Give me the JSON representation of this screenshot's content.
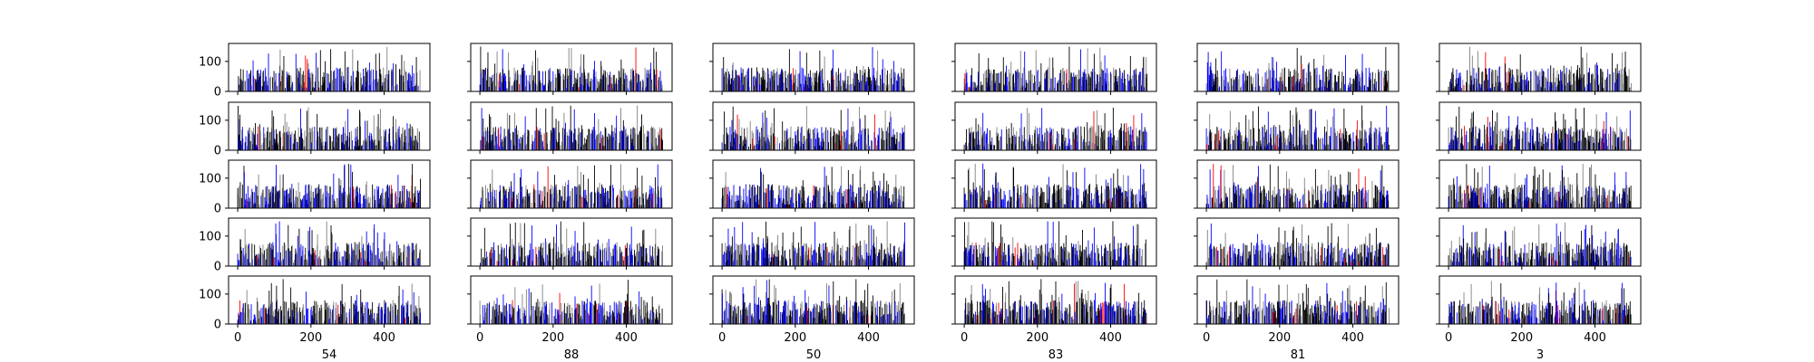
{
  "chart_data": {
    "type": "bar",
    "layout": "grid",
    "rows": 5,
    "cols": 6,
    "column_labels": [
      "54",
      "88",
      "50",
      "83",
      "81",
      "3"
    ],
    "xlim": [
      -25,
      525
    ],
    "ylim": [
      0,
      160
    ],
    "x_ticks": [
      0,
      200,
      400
    ],
    "y_ticks": [
      0,
      100
    ],
    "x_tick_labels": [
      "0",
      "200",
      "400"
    ],
    "y_tick_labels": [
      "0",
      "100"
    ],
    "bars_per_panel": 500,
    "bar_value_range": [
      0,
      150
    ],
    "series_colors": [
      "#000000",
      "#0000ff",
      "#808080",
      "#ff0000"
    ],
    "x_ticklabels_shown_on": "bottom row only",
    "y_ticklabels_shown_on": "first column only",
    "panels": [
      {
        "row": 0,
        "col": 0,
        "label": "54",
        "generator_seed": 54
      },
      {
        "row": 0,
        "col": 1,
        "label": "88",
        "generator_seed": 88
      },
      {
        "row": 0,
        "col": 2,
        "label": "50",
        "generator_seed": 50
      },
      {
        "row": 0,
        "col": 3,
        "label": "83",
        "generator_seed": 83
      },
      {
        "row": 0,
        "col": 4,
        "label": "81",
        "generator_seed": 81
      },
      {
        "row": 0,
        "col": 5,
        "label": "3",
        "generator_seed": 3
      }
    ]
  }
}
